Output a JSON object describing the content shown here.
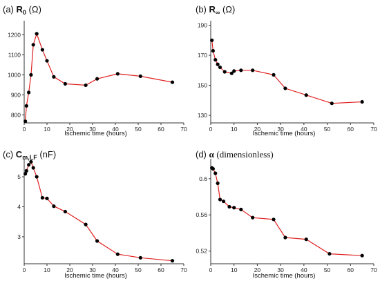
{
  "chart_data": [
    {
      "type": "line",
      "panel_label": "(a)",
      "title_symbol": "R",
      "title_sub": "0",
      "title_unit": "(Ω)",
      "xlabel": "Ischemic time (hours)",
      "ylabel": "",
      "xlim": [
        0,
        70
      ],
      "ylim": [
        760,
        1270
      ],
      "xticks": [
        0,
        10,
        20,
        30,
        40,
        50,
        60,
        70
      ],
      "yticks": [
        800,
        900,
        1000,
        1100,
        1200
      ],
      "series": [
        {
          "color": "#e02020",
          "x": [
            0.5,
            1,
            2,
            3,
            4,
            5.5,
            8,
            10,
            13,
            18,
            27,
            32,
            41,
            51,
            65
          ],
          "y": [
            768,
            845,
            912,
            1000,
            1150,
            1205,
            1125,
            1070,
            990,
            955,
            948,
            980,
            1005,
            993,
            963
          ]
        }
      ]
    },
    {
      "type": "line",
      "panel_label": "(b)",
      "title_symbol": "R",
      "title_sub": "∞",
      "title_unit": "(Ω)",
      "xlabel": "Ischemic time (hours)",
      "ylabel": "",
      "xlim": [
        0,
        70
      ],
      "ylim": [
        125,
        193
      ],
      "xticks": [
        0,
        10,
        20,
        30,
        40,
        50,
        60,
        70
      ],
      "yticks": [
        130,
        150,
        170,
        190
      ],
      "series": [
        {
          "color": "#e02020",
          "x": [
            0.5,
            1,
            2,
            3,
            4,
            6,
            9,
            10,
            13,
            18,
            27,
            32,
            41,
            52,
            65
          ],
          "y": [
            180,
            173,
            167,
            164,
            162,
            159,
            158,
            159.5,
            160,
            160,
            157,
            148,
            143.5,
            138,
            139
          ]
        }
      ]
    },
    {
      "type": "line",
      "panel_label": "(c)",
      "title_symbol": "C",
      "title_sub": "m,LF",
      "title_unit": "(nF)",
      "xlabel": "Ischemic time (hours)",
      "ylabel": "",
      "xlim": [
        0,
        70
      ],
      "ylim": [
        2.1,
        5.6
      ],
      "xticks": [
        0,
        10,
        20,
        30,
        40,
        50,
        60,
        70
      ],
      "yticks": [
        3,
        4,
        5
      ],
      "series": [
        {
          "color": "#e02020",
          "x": [
            0.5,
            1,
            2,
            3,
            4,
            5.5,
            8,
            10,
            13,
            18,
            27,
            32,
            41,
            51,
            65
          ],
          "y": [
            5.1,
            5.2,
            5.4,
            5.5,
            5.3,
            5.0,
            4.3,
            4.28,
            4.02,
            3.84,
            3.41,
            2.86,
            2.42,
            2.3,
            2.2
          ]
        }
      ]
    },
    {
      "type": "line",
      "panel_label": "(d)",
      "title_symbol": "α",
      "title_sub": "",
      "title_unit": "(dimensionless)",
      "xlabel": "Ischemic time (hours)",
      "ylabel": "",
      "xlim": [
        0,
        70
      ],
      "ylim": [
        0.506,
        0.622
      ],
      "xticks": [
        0,
        10,
        20,
        30,
        40,
        50,
        60,
        70
      ],
      "yticks": [
        0.52,
        0.56,
        0.6
      ],
      "ytick_labels": [
        "0.52",
        "0.56",
        "0.6"
      ],
      "series": [
        {
          "color": "#e02020",
          "x": [
            0.5,
            1,
            2,
            3,
            4,
            5.5,
            8,
            10,
            13,
            18,
            27,
            32,
            41,
            51,
            65
          ],
          "y": [
            0.612,
            0.611,
            0.606,
            0.595,
            0.577,
            0.575,
            0.569,
            0.568,
            0.566,
            0.557,
            0.555,
            0.535,
            0.533,
            0.517,
            0.515
          ]
        }
      ]
    }
  ]
}
